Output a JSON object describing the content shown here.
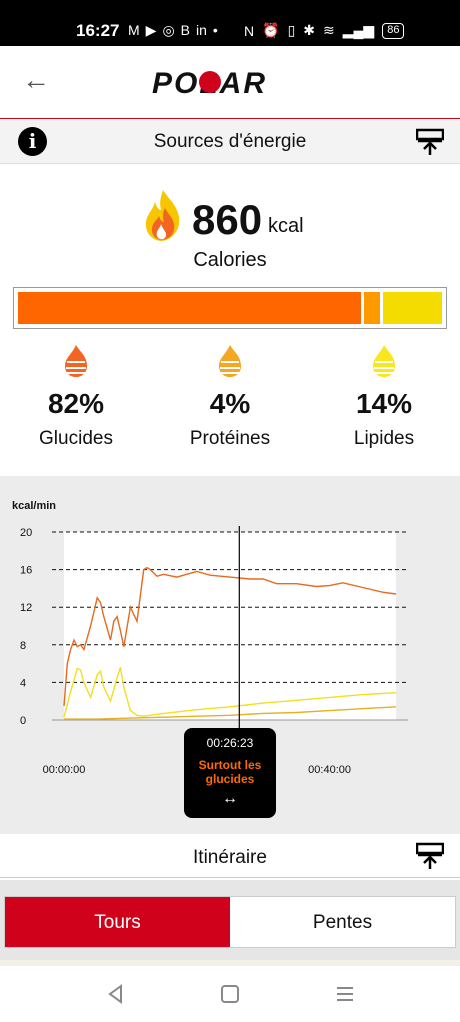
{
  "status_bar": {
    "time": "16:27",
    "left_icons": [
      "gmail-icon",
      "youtube-icon",
      "instagram-icon",
      "b-icon",
      "linkedin-icon",
      "dot-icon"
    ],
    "right_icons": [
      "nfc-icon",
      "alarm-icon",
      "vibrate-icon",
      "bluetooth-icon",
      "wifi-icon",
      "signal-icon"
    ],
    "battery": "86"
  },
  "header": {
    "brand": "POLAR"
  },
  "energy_section": {
    "title": "Sources d'énergie",
    "calories_value": "860",
    "calories_unit": "kcal",
    "calories_label": "Calories",
    "bar": [
      {
        "name": "glucides",
        "fraction": 0.82,
        "color": "#ff6600"
      },
      {
        "name": "proteines",
        "fraction": 0.04,
        "color": "#ff9900"
      },
      {
        "name": "lipides",
        "fraction": 0.14,
        "color": "#f5dc00"
      }
    ],
    "sources": [
      {
        "pct": "82%",
        "name": "Glucides",
        "color": "#f26522"
      },
      {
        "pct": "4%",
        "name": "Protéines",
        "color": "#f5a623"
      },
      {
        "pct": "14%",
        "name": "Lipides",
        "color": "#f8e71c"
      }
    ]
  },
  "chart_data": {
    "type": "line",
    "ylabel": "kcal/min",
    "xlabel": "",
    "ylim": [
      0,
      20
    ],
    "yticks": [
      "0",
      "4",
      "8",
      "12",
      "16",
      "20"
    ],
    "xlim_minutes": [
      0,
      50
    ],
    "xticks": [
      {
        "minutes": 0,
        "label": "00:00:00"
      },
      {
        "minutes": 20,
        "label": "00:2"
      },
      {
        "minutes": 40,
        "label": "00:40:00"
      }
    ],
    "cursor_minutes": 26.4,
    "series": [
      {
        "color": "#e86a1e",
        "x": [
          0,
          0.5,
          1,
          1.5,
          2,
          2.5,
          3,
          4,
          5,
          5.5,
          6,
          7,
          7.5,
          8,
          8.5,
          9,
          10,
          11,
          12,
          12.5,
          13,
          14,
          15,
          17,
          20,
          22,
          25,
          28,
          30,
          32,
          35,
          38,
          40,
          42,
          45,
          48,
          50
        ],
        "y": [
          1.5,
          6,
          7.5,
          8.5,
          7.8,
          8,
          7.5,
          10,
          13,
          12.5,
          11,
          8.5,
          10.5,
          11,
          9.5,
          7.8,
          12,
          10.5,
          16,
          16.2,
          16,
          15.3,
          15.5,
          15.2,
          15.8,
          15.4,
          15.2,
          15,
          15,
          14.5,
          14.5,
          14.2,
          14.3,
          14.6,
          14.1,
          13.6,
          13.4
        ]
      },
      {
        "color": "#f0e020",
        "x": [
          0,
          1,
          2,
          2.5,
          3,
          3.5,
          4,
          5,
          5.5,
          6,
          7,
          8,
          8.5,
          9,
          10,
          11,
          12,
          15,
          20,
          25,
          30,
          35,
          40,
          45,
          50
        ],
        "y": [
          0.3,
          3,
          5.5,
          5.3,
          4,
          3.2,
          2.4,
          4.8,
          5.2,
          3.5,
          2,
          4.5,
          5.6,
          3.5,
          1,
          0.5,
          0.4,
          0.7,
          1.1,
          1.4,
          1.8,
          2.1,
          2.4,
          2.7,
          2.9
        ]
      },
      {
        "color": "#e6b020",
        "x": [
          0,
          5,
          10,
          15,
          20,
          25,
          30,
          35,
          40,
          45,
          50
        ],
        "y": [
          0.1,
          0.1,
          0.2,
          0.3,
          0.4,
          0.5,
          0.7,
          0.8,
          1.0,
          1.2,
          1.4
        ]
      }
    ]
  },
  "tooltip": {
    "time": "00:26:23",
    "text": "Surtout les glucides",
    "arrows": "↔"
  },
  "route_section": {
    "title": "Itinéraire"
  },
  "tabs": [
    {
      "label": "Tours",
      "active": true
    },
    {
      "label": "Pentes",
      "active": false
    }
  ],
  "nav_bar": {
    "buttons": [
      "back-nav-icon",
      "home-nav-icon",
      "recents-nav-icon"
    ]
  }
}
